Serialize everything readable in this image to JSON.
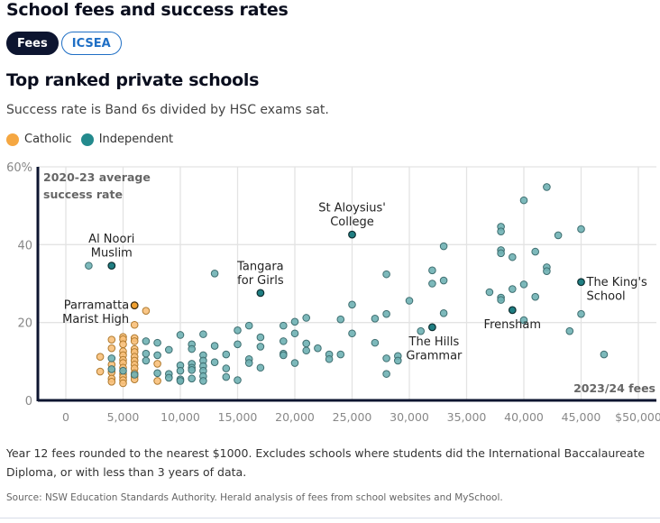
{
  "header": {
    "title": "School fees and success rates",
    "toggle": [
      {
        "label": "Fees",
        "active": true
      },
      {
        "label": "ICSEA",
        "active": false
      }
    ],
    "subtitle": "Top ranked private schools",
    "description": "Success rate is Band 6s divided by HSC exams sat."
  },
  "legend": [
    {
      "label": "Catholic",
      "color": "#f5a742"
    },
    {
      "label": "Independent",
      "color": "#238a8d"
    }
  ],
  "footer": {
    "note": "Year 12 fees rounded to the nearest $1000. Excludes schools where students did the International Baccalaureate Diploma, or with less than 3 years of data.",
    "source": "Source: NSW Education Standards Authority. Herald analysis of fees from school websites and MySchool."
  },
  "chart_data": {
    "type": "scatter",
    "title": "Top ranked private schools",
    "ylabel": "2020-23 average success rate",
    "xlabel": "2023/24 fees",
    "xlim": [
      -2500,
      51000
    ],
    "ylim": [
      0,
      60
    ],
    "x_ticks": [
      0,
      5000,
      10000,
      15000,
      20000,
      25000,
      30000,
      35000,
      40000,
      45000,
      50000
    ],
    "x_tick_labels": [
      "0",
      "5,000",
      "10,000",
      "15,000",
      "20,000",
      "25,000",
      "30,000",
      "35,000",
      "40,000",
      "45,000",
      "$50,000"
    ],
    "y_ticks": [
      0,
      20,
      40,
      60
    ],
    "y_tick_labels": [
      "0",
      "20",
      "40",
      "60%"
    ],
    "grid": true,
    "colors": {
      "Catholic": "#f5a742",
      "Independent": "#238a8d"
    },
    "series": [
      {
        "name": "Catholic",
        "points": [
          [
            3000,
            11.2
          ],
          [
            3000,
            7.4
          ],
          [
            4000,
            15.6
          ],
          [
            4000,
            13.4
          ],
          [
            4000,
            9.2
          ],
          [
            4000,
            7.2
          ],
          [
            4000,
            5.6
          ],
          [
            4000,
            4.8
          ],
          [
            5000,
            16.3
          ],
          [
            5000,
            15.7
          ],
          [
            5000,
            14.4
          ],
          [
            5000,
            12.6
          ],
          [
            5000,
            11.6
          ],
          [
            5000,
            10.4
          ],
          [
            5000,
            9.6
          ],
          [
            5000,
            8.4
          ],
          [
            5000,
            6.8
          ],
          [
            5000,
            6.0
          ],
          [
            5000,
            5.2
          ],
          [
            5000,
            4.4
          ],
          [
            6000,
            24.4
          ],
          [
            6000,
            19.4
          ],
          [
            6000,
            16.0
          ],
          [
            6000,
            15.2
          ],
          [
            6000,
            13.2
          ],
          [
            6000,
            12.4
          ],
          [
            6000,
            11.2
          ],
          [
            6000,
            10.2
          ],
          [
            6000,
            9.2
          ],
          [
            6000,
            8.2
          ],
          [
            6000,
            7.0
          ],
          [
            6000,
            6.2
          ],
          [
            6000,
            5.4
          ],
          [
            7000,
            23.0
          ],
          [
            8000,
            9.4
          ],
          [
            8000,
            5.0
          ]
        ]
      },
      {
        "name": "Independent",
        "points": [
          [
            2000,
            34.6
          ],
          [
            4000,
            10.8
          ],
          [
            4000,
            8.0
          ],
          [
            5000,
            7.6
          ],
          [
            6000,
            6.6
          ],
          [
            7000,
            15.2
          ],
          [
            7000,
            12.0
          ],
          [
            7000,
            10.2
          ],
          [
            8000,
            14.8
          ],
          [
            8000,
            11.6
          ],
          [
            8000,
            7.0
          ],
          [
            9000,
            13.0
          ],
          [
            9000,
            6.8
          ],
          [
            9000,
            5.8
          ],
          [
            10000,
            16.8
          ],
          [
            10000,
            9.0
          ],
          [
            10000,
            7.6
          ],
          [
            10000,
            5.4
          ],
          [
            10000,
            5.0
          ],
          [
            11000,
            14.4
          ],
          [
            11000,
            13.2
          ],
          [
            11000,
            9.4
          ],
          [
            11000,
            8.4
          ],
          [
            11000,
            7.8
          ],
          [
            11000,
            5.6
          ],
          [
            12000,
            17.0
          ],
          [
            12000,
            11.6
          ],
          [
            12000,
            10.2
          ],
          [
            12000,
            8.8
          ],
          [
            12000,
            7.6
          ],
          [
            12000,
            6.2
          ],
          [
            12000,
            5.0
          ],
          [
            13000,
            32.6
          ],
          [
            13000,
            14.0
          ],
          [
            13000,
            9.8
          ],
          [
            14000,
            11.8
          ],
          [
            14000,
            8.2
          ],
          [
            14000,
            6.0
          ],
          [
            15000,
            18.0
          ],
          [
            15000,
            14.4
          ],
          [
            15000,
            5.2
          ],
          [
            16000,
            10.6
          ],
          [
            16000,
            9.6
          ],
          [
            16000,
            19.2
          ],
          [
            17000,
            16.2
          ],
          [
            17000,
            13.8
          ],
          [
            17000,
            8.4
          ],
          [
            19000,
            19.2
          ],
          [
            19000,
            15.2
          ],
          [
            19000,
            12.0
          ],
          [
            19000,
            11.6
          ],
          [
            20000,
            20.2
          ],
          [
            20000,
            17.2
          ],
          [
            20000,
            9.6
          ],
          [
            21000,
            21.2
          ],
          [
            21000,
            14.6
          ],
          [
            21000,
            12.8
          ],
          [
            22000,
            13.4
          ],
          [
            23000,
            11.8
          ],
          [
            23000,
            10.6
          ],
          [
            24000,
            20.8
          ],
          [
            24000,
            11.8
          ],
          [
            25000,
            24.6
          ],
          [
            25000,
            17.2
          ],
          [
            27000,
            21.0
          ],
          [
            27000,
            14.8
          ],
          [
            28000,
            32.4
          ],
          [
            28000,
            22.2
          ],
          [
            28000,
            10.8
          ],
          [
            28000,
            6.8
          ],
          [
            29000,
            11.4
          ],
          [
            29000,
            10.2
          ],
          [
            30000,
            25.6
          ],
          [
            31000,
            17.8
          ],
          [
            32000,
            33.4
          ],
          [
            32000,
            30.0
          ],
          [
            33000,
            39.6
          ],
          [
            33000,
            30.8
          ],
          [
            33000,
            22.4
          ],
          [
            37000,
            27.8
          ],
          [
            38000,
            44.6
          ],
          [
            38000,
            43.4
          ],
          [
            38000,
            38.6
          ],
          [
            38000,
            37.8
          ],
          [
            38000,
            26.4
          ],
          [
            38000,
            25.8
          ],
          [
            39000,
            36.8
          ],
          [
            39000,
            28.6
          ],
          [
            40000,
            51.4
          ],
          [
            40000,
            29.8
          ],
          [
            40000,
            20.6
          ],
          [
            41000,
            38.2
          ],
          [
            41000,
            26.6
          ],
          [
            42000,
            54.8
          ],
          [
            42000,
            34.2
          ],
          [
            42000,
            33.2
          ],
          [
            43000,
            42.4
          ],
          [
            44000,
            17.8
          ],
          [
            45000,
            44.0
          ],
          [
            45000,
            22.2
          ],
          [
            47000,
            11.8
          ]
        ]
      }
    ],
    "annotations": [
      {
        "label": "Al Noori Muslim",
        "lines": [
          "Al Noori",
          "Muslim"
        ],
        "x": 4000,
        "y": 34.6,
        "series": "Independent",
        "anchor": "above"
      },
      {
        "label": "Parramatta Marist High",
        "lines": [
          "Parramatta",
          "Marist High"
        ],
        "x": 6000,
        "y": 24.4,
        "series": "Catholic",
        "anchor": "left"
      },
      {
        "label": "Tangara for Girls",
        "lines": [
          "Tangara",
          "for Girls"
        ],
        "x": 17000,
        "y": 27.6,
        "series": "Independent",
        "anchor": "above"
      },
      {
        "label": "St Aloysius' College",
        "lines": [
          "St Aloysius'",
          "College"
        ],
        "x": 25000,
        "y": 42.6,
        "series": "Independent",
        "anchor": "above"
      },
      {
        "label": "The Hills Grammar",
        "lines": [
          "The Hills",
          "Grammar"
        ],
        "x": 32000,
        "y": 18.8,
        "series": "Independent",
        "anchor": "below"
      },
      {
        "label": "Frensham",
        "lines": [
          "Frensham"
        ],
        "x": 39000,
        "y": 23.2,
        "series": "Independent",
        "anchor": "below"
      },
      {
        "label": "The King's School",
        "lines": [
          "The King's",
          "School"
        ],
        "x": 45000,
        "y": 30.4,
        "series": "Independent",
        "anchor": "right"
      }
    ]
  }
}
